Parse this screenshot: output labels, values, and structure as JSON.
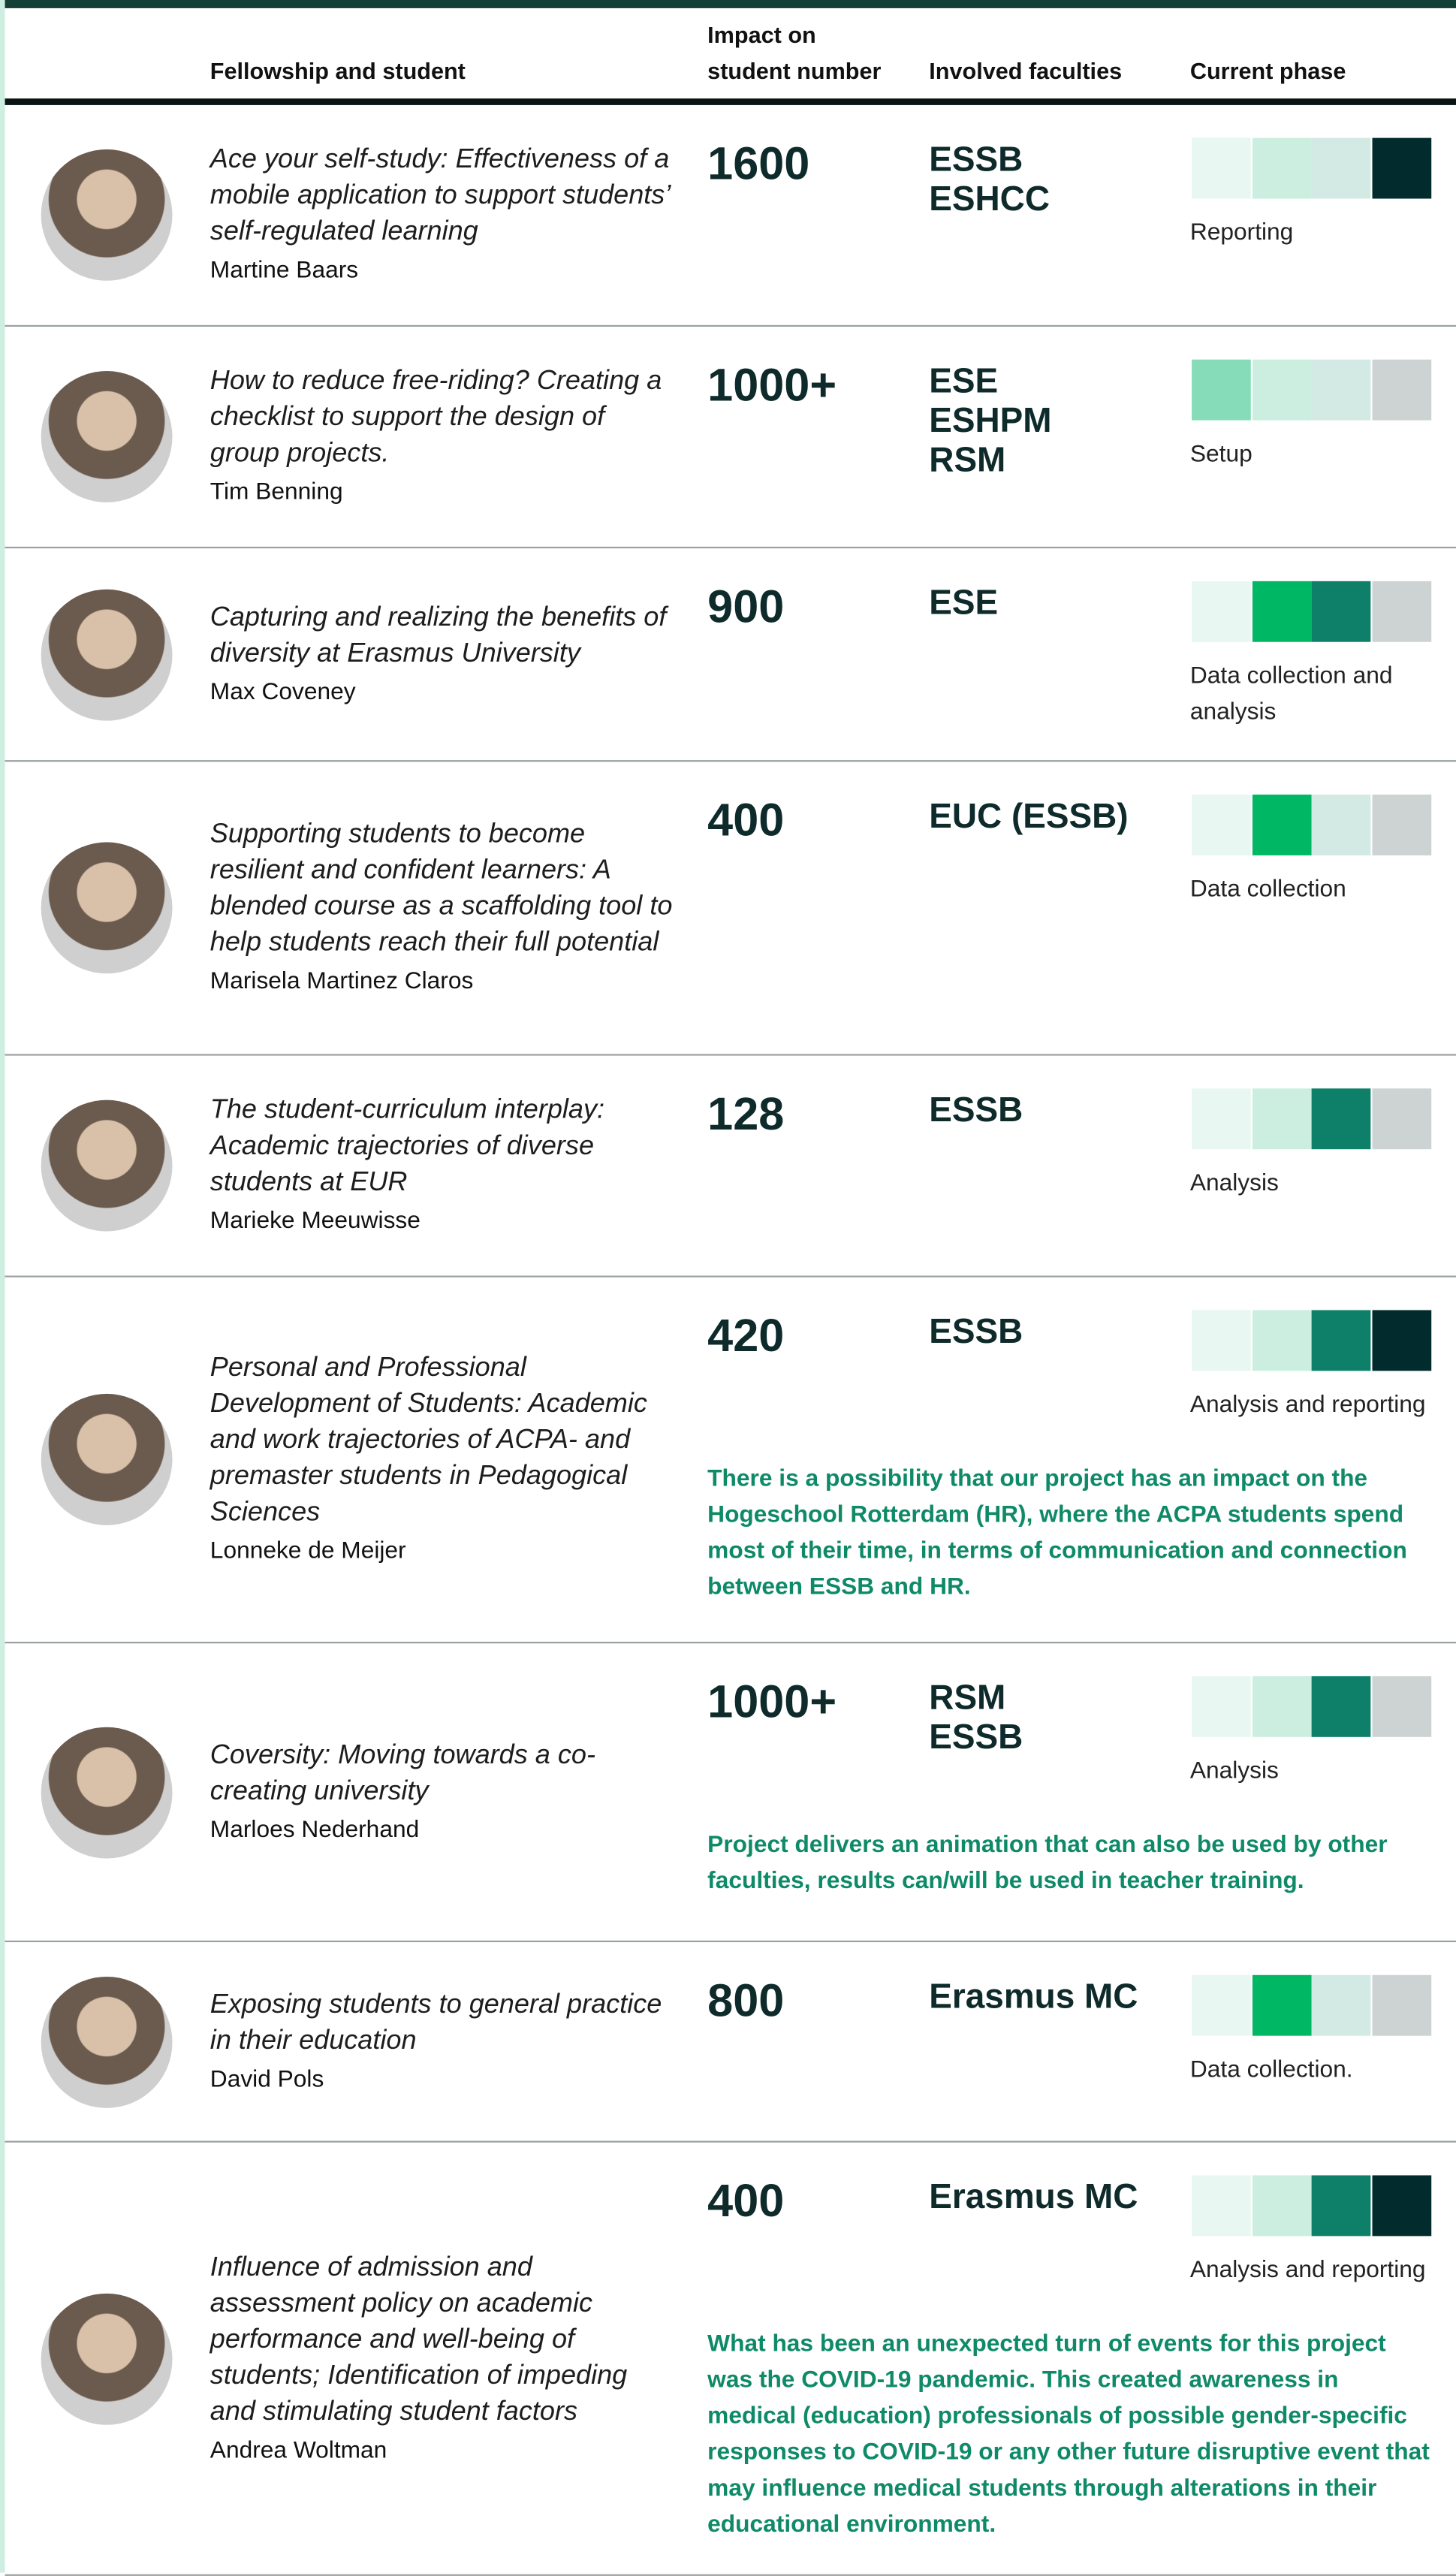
{
  "header": {
    "columns": [
      "Fellowship and student",
      "Impact on student number",
      "Involved faculties",
      "Current phase"
    ]
  },
  "rows": [
    {
      "title": "Ace your self-study: Effectiveness of a mobile application to support students’ self-regulated learning",
      "student": "Martine Baars",
      "impact": "1600",
      "faculties": [
        "ESSB",
        "ESHCC"
      ],
      "phase": "Reporting",
      "phase_colors": [
        "#e8f7f1",
        "#cbeee0",
        "#d3e9e3",
        "#022b2d"
      ]
    },
    {
      "title": "How to reduce free-riding? Creating a checklist to support the design of group projects.",
      "student": "Tim Benning",
      "impact": "1000+",
      "faculties": [
        "ESE",
        "ESHPM",
        "RSM"
      ],
      "phase": "Setup",
      "phase_colors": [
        "#86dcb9",
        "#cbeee0",
        "#d3e9e3",
        "#cdd3d3"
      ]
    },
    {
      "title": "Capturing and realizing the benefits of diversity at Erasmus University",
      "student": "Max Coveney",
      "impact": "900",
      "faculties": [
        "ESE"
      ],
      "phase": "Data collection and analysis",
      "phase_colors": [
        "#e8f7f1",
        "#00b864",
        "#0e7f68",
        "#cdd3d3"
      ]
    },
    {
      "title": "Supporting students to become resilient and confident learners: A blended course as a scaffolding tool to help students reach their full potential",
      "student": "Marisela Martinez Claros",
      "impact": "400",
      "faculties": [
        "EUC (ESSB)"
      ],
      "phase": "Data collection",
      "phase_colors": [
        "#e8f7f1",
        "#00b864",
        "#d3e9e3",
        "#cdd3d3"
      ]
    },
    {
      "title": "The student-curriculum interplay: Academic trajectories of diverse students at EUR",
      "student": "Marieke Meeuwisse",
      "impact": "128",
      "faculties": [
        "ESSB"
      ],
      "phase": "Analysis",
      "phase_colors": [
        "#e8f7f1",
        "#cbeee0",
        "#0e7f68",
        "#cdd3d3"
      ]
    },
    {
      "title": "Personal and Professional Development of Students: Academic and work trajectories of ACPA- and premaster students in Pedagogical Sciences",
      "student": "Lonneke de Meijer",
      "impact": "420",
      "faculties": [
        "ESSB"
      ],
      "phase": "Analysis and reporting",
      "phase_colors": [
        "#e8f7f1",
        "#cbeee0",
        "#0e7f68",
        "#022b2d"
      ],
      "note": "There is a possibility that our project has an impact on the Hogeschool Rotterdam (HR), where the ACPA students spend most of their time, in terms of communication and connection between ESSB and HR."
    },
    {
      "title": "Coversity: Moving towards a co-creating university",
      "student": "Marloes Nederhand",
      "impact": "1000+",
      "faculties": [
        "RSM",
        "ESSB"
      ],
      "phase": "Analysis",
      "phase_colors": [
        "#e8f7f1",
        "#cbeee0",
        "#0e7f68",
        "#cdd3d3"
      ],
      "note": "Project delivers an animation that can also be used by other faculties, results can/will be used in teacher training."
    },
    {
      "title": "Exposing students to general practice in their education",
      "student": "David Pols",
      "impact": "800",
      "faculties": [
        "Erasmus MC"
      ],
      "phase": "Data collection.",
      "phase_colors": [
        "#e8f7f1",
        "#00b864",
        "#d3e9e3",
        "#cdd3d3"
      ]
    },
    {
      "title": "Influence of admission and assessment policy on academic performance and well-being of students; Identification of impeding and stimulating student factors",
      "student": "Andrea Woltman",
      "impact": "400",
      "faculties": [
        "Erasmus MC"
      ],
      "phase": "Analysis and reporting",
      "phase_colors": [
        "#e8f7f1",
        "#cbeee0",
        "#0e7f68",
        "#022b2d"
      ],
      "note": "What has been an unexpected turn of events for this project was the COVID-19 pandemic. This created awareness in medical (education) professionals of possible gender-specific responses to COVID-19 or any other future disruptive event that may influence medical students through alterations in their educational environment."
    }
  ]
}
